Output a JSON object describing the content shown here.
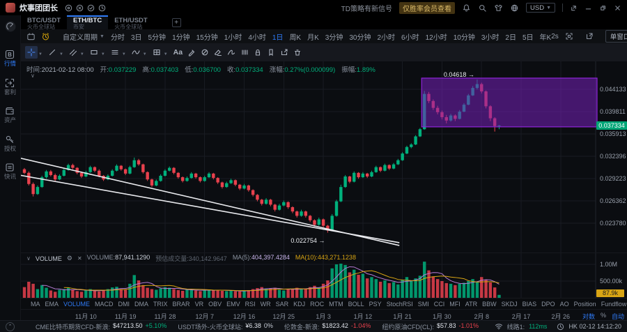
{
  "window": {
    "title": "炊事团团长",
    "signal_text": "TD策略有新信号",
    "signal_badge": "仅胜率会员查看",
    "currency": "USD"
  },
  "tabs": [
    {
      "pair": "BTC/USDT",
      "exchange": "火币全球站",
      "active": false
    },
    {
      "pair": "ETH/BTC",
      "exchange": "币安",
      "active": true
    },
    {
      "pair": "ETH/USDT",
      "exchange": "火币全球站",
      "active": false
    }
  ],
  "sidebar": [
    {
      "label": "行情",
      "icon": "market-icon",
      "active": true
    },
    {
      "label": "套利",
      "icon": "arbitrage-icon",
      "active": false
    },
    {
      "label": "资产",
      "icon": "assets-icon",
      "active": false
    },
    {
      "label": "授权",
      "icon": "authorize-icon",
      "active": false
    },
    {
      "label": "快讯",
      "icon": "news-icon",
      "active": false
    }
  ],
  "timeframe_bar": {
    "custom": "自定义周期",
    "items": [
      "分时",
      "3日",
      "5分钟",
      "1分钟",
      "15分钟",
      "1小时",
      "4小时",
      "1日",
      "周K",
      "月K",
      "3分钟",
      "30分钟",
      "2小时",
      "6小时",
      "12小时",
      "10分钟",
      "3小时",
      "2日",
      "5日",
      "年K"
    ],
    "active": "1日",
    "refresh": "2s",
    "window_mode": "单窗口"
  },
  "info_bar": [
    {
      "label": "时间:",
      "value": "2021-02-12 08:00",
      "cls": "plain"
    },
    {
      "label": "开:",
      "value": "0.037229",
      "cls": "up"
    },
    {
      "label": "高:",
      "value": "0.037403",
      "cls": "up"
    },
    {
      "label": "低:",
      "value": "0.036700",
      "cls": "up"
    },
    {
      "label": "收:",
      "value": "0.037334",
      "cls": "up"
    },
    {
      "label": "涨幅:",
      "value": "0.27%(0.000099)",
      "cls": "up"
    },
    {
      "label": "振幅:",
      "value": "1.89%",
      "cls": "up"
    }
  ],
  "volume_header": {
    "name": "VOLUME",
    "pairs": [
      {
        "label": "VOLUME:",
        "value": "87,941.1290",
        "cls": "white"
      },
      {
        "label": "预估成交量:",
        "value": "340,142.9647",
        "cls": "dim"
      },
      {
        "label": "MA(5):",
        "value": "404,397.4284",
        "cls": "ma5"
      },
      {
        "label": "MA(10):",
        "value": "443,271.1238",
        "cls": "ma10"
      }
    ]
  },
  "indicator_tabs": {
    "items": [
      "MA",
      "EMA",
      "VOLUME",
      "MACD",
      "DMI",
      "DMA",
      "TRIX",
      "BRAR",
      "VR",
      "OBV",
      "EMV",
      "RSI",
      "WR",
      "SAR",
      "KDJ",
      "ROC",
      "MTM",
      "BOLL",
      "PSY",
      "StochRSI",
      "SMI",
      "CCI",
      "MFI",
      "ATR",
      "BBW",
      "SKDJ",
      "BIAS",
      "DPO",
      "AO",
      "Position",
      "Fundflow"
    ],
    "active": "VOLUME"
  },
  "axis_controls": {
    "log": "对数",
    "percent": "%",
    "auto": "自动"
  },
  "status_bar": {
    "quotes": [
      {
        "label": "CME比特币期货CFD-新浪:",
        "value": "$47213.50",
        "change": "+5.10%",
        "dir": "up"
      },
      {
        "label": "USDT场外-火币全球站:",
        "value": "¥6.38",
        "change": "0%",
        "dir": "flat"
      },
      {
        "label": "伦敦金-新浪:",
        "value": "$1823.42",
        "change": "-1.04%",
        "dir": "down"
      },
      {
        "label": "纽约原油CFD(CL):",
        "value": "$57.83",
        "change": "-1.01%",
        "dir": "down"
      }
    ],
    "network_label": "线路1:",
    "network_value": "112ms",
    "clock": "HK 02-12 14:12:20"
  },
  "chart_data": {
    "type": "candlestick",
    "symbol": "ETH/BTC",
    "interval": "1日",
    "log_scale": true,
    "price_ticks": [
      {
        "label": "0.044133",
        "price": 0.044133
      },
      {
        "label": "0.039811",
        "price": 0.039811
      },
      {
        "label": "0.035913",
        "price": 0.035913
      },
      {
        "label": "0.032396",
        "price": 0.032396
      },
      {
        "label": "0.029223",
        "price": 0.029223
      },
      {
        "label": "0.026362",
        "price": 0.026362
      },
      {
        "label": "0.023780",
        "price": 0.02378
      }
    ],
    "current_price": {
      "label": "0.037334",
      "price": 0.037334
    },
    "date_ticks": [
      {
        "label": "11月 10",
        "index": 14
      },
      {
        "label": "11月 19",
        "index": 23
      },
      {
        "label": "11月 28",
        "index": 32
      },
      {
        "label": "12月 7",
        "index": 41
      },
      {
        "label": "12月 16",
        "index": 50
      },
      {
        "label": "12月 25",
        "index": 59
      },
      {
        "label": "1月 3",
        "index": 68
      },
      {
        "label": "1月 12",
        "index": 77
      },
      {
        "label": "1月 21",
        "index": 86
      },
      {
        "label": "1月 30",
        "index": 95
      },
      {
        "label": "2月 8",
        "index": 104
      },
      {
        "label": "2月 17",
        "index": 113
      },
      {
        "label": "2月 26",
        "index": 122
      }
    ],
    "ohlc": [
      [
        0.0305,
        0.03068,
        0.02982,
        0.03
      ],
      [
        0.03,
        0.0302,
        0.0283,
        0.0285
      ],
      [
        0.0285,
        0.0287,
        0.0269,
        0.0272
      ],
      [
        0.0272,
        0.0283,
        0.0271,
        0.0281
      ],
      [
        0.0281,
        0.0296,
        0.028,
        0.0294
      ],
      [
        0.0294,
        0.0304,
        0.0292,
        0.0302
      ],
      [
        0.0302,
        0.0304,
        0.0295,
        0.0297
      ],
      [
        0.0297,
        0.0299,
        0.0289,
        0.0291
      ],
      [
        0.0291,
        0.0298,
        0.029,
        0.0296
      ],
      [
        0.0296,
        0.0306,
        0.0295,
        0.0304
      ],
      [
        0.0304,
        0.0313,
        0.0303,
        0.0311
      ],
      [
        0.0311,
        0.0313,
        0.0305,
        0.0307
      ],
      [
        0.0307,
        0.0308,
        0.0298,
        0.03
      ],
      [
        0.03,
        0.0302,
        0.0293,
        0.0295
      ],
      [
        0.0295,
        0.0303,
        0.0294,
        0.0301
      ],
      [
        0.0301,
        0.031,
        0.03,
        0.0308
      ],
      [
        0.0308,
        0.0309,
        0.0301,
        0.0303
      ],
      [
        0.0303,
        0.0305,
        0.0294,
        0.0296
      ],
      [
        0.0296,
        0.0297,
        0.0289,
        0.0291
      ],
      [
        0.0291,
        0.0298,
        0.029,
        0.0296
      ],
      [
        0.0296,
        0.0305,
        0.0295,
        0.0303
      ],
      [
        0.0303,
        0.0312,
        0.0302,
        0.031
      ],
      [
        0.031,
        0.0311,
        0.0303,
        0.0305
      ],
      [
        0.0305,
        0.0306,
        0.0297,
        0.0299
      ],
      [
        0.0299,
        0.031,
        0.0298,
        0.0308
      ],
      [
        0.0308,
        0.0322,
        0.0307,
        0.0318
      ],
      [
        0.0318,
        0.032,
        0.031,
        0.0312
      ],
      [
        0.0312,
        0.0313,
        0.0299,
        0.0301
      ],
      [
        0.0301,
        0.0302,
        0.0289,
        0.0291
      ],
      [
        0.0291,
        0.0292,
        0.0281,
        0.0283
      ],
      [
        0.0283,
        0.0291,
        0.0282,
        0.0289
      ],
      [
        0.0289,
        0.0298,
        0.0288,
        0.0296
      ],
      [
        0.0296,
        0.0305,
        0.0295,
        0.0303
      ],
      [
        0.0303,
        0.0309,
        0.0302,
        0.0307
      ],
      [
        0.0307,
        0.0308,
        0.0298,
        0.03
      ],
      [
        0.03,
        0.0301,
        0.0292,
        0.0294
      ],
      [
        0.0294,
        0.0295,
        0.0287,
        0.0289
      ],
      [
        0.0289,
        0.0295,
        0.0288,
        0.0293
      ],
      [
        0.0293,
        0.0301,
        0.0292,
        0.0299
      ],
      [
        0.0299,
        0.03,
        0.0292,
        0.0294
      ],
      [
        0.0294,
        0.0295,
        0.0287,
        0.0289
      ],
      [
        0.0289,
        0.0296,
        0.0288,
        0.0294
      ],
      [
        0.0294,
        0.0301,
        0.0293,
        0.0299
      ],
      [
        0.0299,
        0.03,
        0.0291,
        0.0293
      ],
      [
        0.0293,
        0.0294,
        0.0285,
        0.0287
      ],
      [
        0.0287,
        0.0288,
        0.0279,
        0.0281
      ],
      [
        0.0281,
        0.0288,
        0.028,
        0.0286
      ],
      [
        0.0286,
        0.0292,
        0.0285,
        0.029
      ],
      [
        0.029,
        0.0291,
        0.0282,
        0.0284
      ],
      [
        0.0284,
        0.0285,
        0.0277,
        0.0279
      ],
      [
        0.0279,
        0.0285,
        0.0278,
        0.0283
      ],
      [
        0.0283,
        0.0284,
        0.0275,
        0.0277
      ],
      [
        0.0277,
        0.0278,
        0.0269,
        0.0271
      ],
      [
        0.0271,
        0.0272,
        0.0263,
        0.0265
      ],
      [
        0.0265,
        0.0266,
        0.0258,
        0.026
      ],
      [
        0.026,
        0.0267,
        0.0259,
        0.0265
      ],
      [
        0.0265,
        0.0266,
        0.0257,
        0.0259
      ],
      [
        0.0259,
        0.026,
        0.0251,
        0.0253
      ],
      [
        0.0253,
        0.026,
        0.0252,
        0.0258
      ],
      [
        0.0258,
        0.0264,
        0.0257,
        0.0262
      ],
      [
        0.0262,
        0.0263,
        0.0254,
        0.0256
      ],
      [
        0.0256,
        0.0257,
        0.0249,
        0.0251
      ],
      [
        0.0251,
        0.0252,
        0.0244,
        0.0246
      ],
      [
        0.0246,
        0.0253,
        0.0245,
        0.0251
      ],
      [
        0.0251,
        0.0252,
        0.0244,
        0.0246
      ],
      [
        0.0246,
        0.0247,
        0.0239,
        0.0241
      ],
      [
        0.0241,
        0.0242,
        0.0234,
        0.0236
      ],
      [
        0.0236,
        0.0244,
        0.0235,
        0.0242
      ],
      [
        0.0242,
        0.0243,
        0.0233,
        0.0235
      ],
      [
        0.0235,
        0.0236,
        0.022754,
        0.023
      ],
      [
        0.023,
        0.0248,
        0.0229,
        0.0246
      ],
      [
        0.0246,
        0.0265,
        0.0245,
        0.0263
      ],
      [
        0.0263,
        0.0284,
        0.0262,
        0.0281
      ],
      [
        0.0281,
        0.0297,
        0.028,
        0.0295
      ],
      [
        0.0295,
        0.0296,
        0.0286,
        0.0288
      ],
      [
        0.0288,
        0.0302,
        0.0287,
        0.03
      ],
      [
        0.03,
        0.0301,
        0.0292,
        0.0294
      ],
      [
        0.0294,
        0.0301,
        0.0293,
        0.0299
      ],
      [
        0.0299,
        0.03,
        0.0293,
        0.0295
      ],
      [
        0.0295,
        0.0303,
        0.0294,
        0.0301
      ],
      [
        0.0301,
        0.031,
        0.03,
        0.0308
      ],
      [
        0.0308,
        0.0309,
        0.0301,
        0.0303
      ],
      [
        0.0303,
        0.0313,
        0.0302,
        0.0311
      ],
      [
        0.0311,
        0.0312,
        0.0304,
        0.0306
      ],
      [
        0.0306,
        0.0314,
        0.0305,
        0.0312
      ],
      [
        0.0312,
        0.032,
        0.0311,
        0.0318
      ],
      [
        0.0318,
        0.033,
        0.0317,
        0.0328
      ],
      [
        0.0328,
        0.034,
        0.0327,
        0.0338
      ],
      [
        0.0338,
        0.0344,
        0.0336,
        0.0342
      ],
      [
        0.0342,
        0.0357,
        0.0341,
        0.0355
      ],
      [
        0.0355,
        0.0369,
        0.0354,
        0.0367
      ],
      [
        0.0367,
        0.0438,
        0.0366,
        0.0432
      ],
      [
        0.0432,
        0.0436,
        0.0414,
        0.0418
      ],
      [
        0.0418,
        0.0421,
        0.0401,
        0.0405
      ],
      [
        0.0405,
        0.0409,
        0.0393,
        0.0397
      ],
      [
        0.0397,
        0.04,
        0.0384,
        0.0388
      ],
      [
        0.0388,
        0.0392,
        0.0377,
        0.0382
      ],
      [
        0.0382,
        0.0394,
        0.038,
        0.0391
      ],
      [
        0.0391,
        0.0393,
        0.0381,
        0.0385
      ],
      [
        0.0385,
        0.0401,
        0.0384,
        0.0398
      ],
      [
        0.0398,
        0.0414,
        0.0397,
        0.0411
      ],
      [
        0.0411,
        0.0432,
        0.041,
        0.0429
      ],
      [
        0.0429,
        0.0448,
        0.0428,
        0.0444
      ],
      [
        0.0444,
        0.04618,
        0.0441,
        0.0452
      ],
      [
        0.0452,
        0.0455,
        0.0433,
        0.0437
      ],
      [
        0.0437,
        0.0439,
        0.0404,
        0.0408
      ],
      [
        0.0408,
        0.041,
        0.0381,
        0.0386
      ],
      [
        0.0386,
        0.0388,
        0.0363,
        0.037235
      ],
      [
        0.037229,
        0.037403,
        0.0367,
        0.037334
      ]
    ],
    "volumes": [
      320000,
      480000,
      420000,
      260000,
      380000,
      300000,
      220000,
      180000,
      240000,
      260000,
      300000,
      240000,
      200000,
      180000,
      220000,
      260000,
      210000,
      190000,
      230000,
      260000,
      310000,
      330000,
      260000,
      240000,
      420000,
      680000,
      520000,
      380000,
      300000,
      260000,
      240000,
      280000,
      320000,
      300000,
      260000,
      230000,
      210000,
      240000,
      260000,
      220000,
      200000,
      230000,
      250000,
      220000,
      240000,
      210000,
      200000,
      220000,
      200000,
      190000,
      210000,
      230000,
      260000,
      290000,
      320000,
      260000,
      280000,
      300000,
      240000,
      220000,
      250000,
      270000,
      300000,
      260000,
      280000,
      320000,
      360000,
      300000,
      420000,
      520000,
      880000,
      1000000,
      1020000,
      980000,
      760000,
      840000,
      690000,
      720000,
      580000,
      620000,
      560000,
      480000,
      520000,
      440000,
      470000,
      400000,
      540000,
      620000,
      500000,
      580000,
      660000,
      1080000,
      820000,
      640000,
      560000,
      500000,
      440000,
      420000,
      380000,
      420000,
      450000,
      500000,
      560000,
      485000,
      620000,
      540000,
      460000,
      310000,
      87941
    ],
    "volume_ticks": [
      {
        "label": "1.00M",
        "value": 1000000
      },
      {
        "label": "500.00k",
        "value": 500000
      }
    ],
    "current_volume": {
      "label": "87.9k",
      "value": 87941
    },
    "annotations": [
      {
        "text": "0.04618  →",
        "index": 103,
        "price": 0.0472
      },
      {
        "text": "0.022754  →",
        "index": 69,
        "price": 0.02195
      }
    ],
    "box": {
      "start_index": 91,
      "price_top": 0.04647,
      "price_bottom": 0.0371
    },
    "trendlines": [
      {
        "i1": -0.8,
        "p1": 0.03209,
        "i2": 85.3,
        "p2": 0.02145
      },
      {
        "i1": -0.8,
        "p1": 0.02965,
        "i2": 85.3,
        "p2": 0.02173
      }
    ],
    "colors": {
      "up": "#00b07c",
      "down": "#e8414d",
      "ma5": "#b57bd4",
      "ma10": "#d9a514",
      "box_fill": "rgba(118,32,185,0.55)",
      "box_stroke": "#8e24d8",
      "trendline": "#e9eaee",
      "grid": "#181b22",
      "axis_line": "#21252d",
      "current_price_bg": "#00a576",
      "current_volume_bg": "#d9a514"
    }
  }
}
